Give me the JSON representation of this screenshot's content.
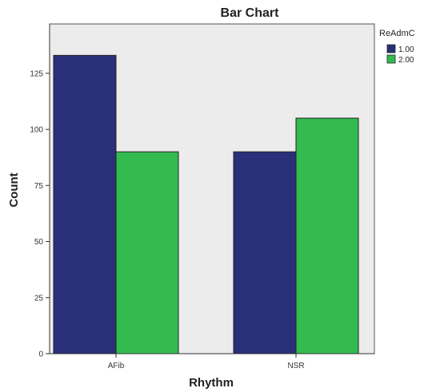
{
  "chart_data": {
    "type": "bar",
    "title": "Bar Chart",
    "xlabel": "Rhythm",
    "ylabel": "Count",
    "categories": [
      "AFib",
      "NSR"
    ],
    "series": [
      {
        "name": "1.00",
        "values": [
          133,
          90
        ]
      },
      {
        "name": "2.00",
        "values": [
          90,
          105
        ]
      }
    ],
    "ylim": [
      0,
      147
    ],
    "yticks": [
      0,
      25,
      50,
      75,
      100,
      125
    ],
    "legend": {
      "title": "ReAdmC",
      "placement": "top-right outside"
    },
    "colors": {
      "series": [
        "#2a2f7a",
        "#33bb4f"
      ],
      "plot_background": "#ececec"
    },
    "grid": false
  }
}
